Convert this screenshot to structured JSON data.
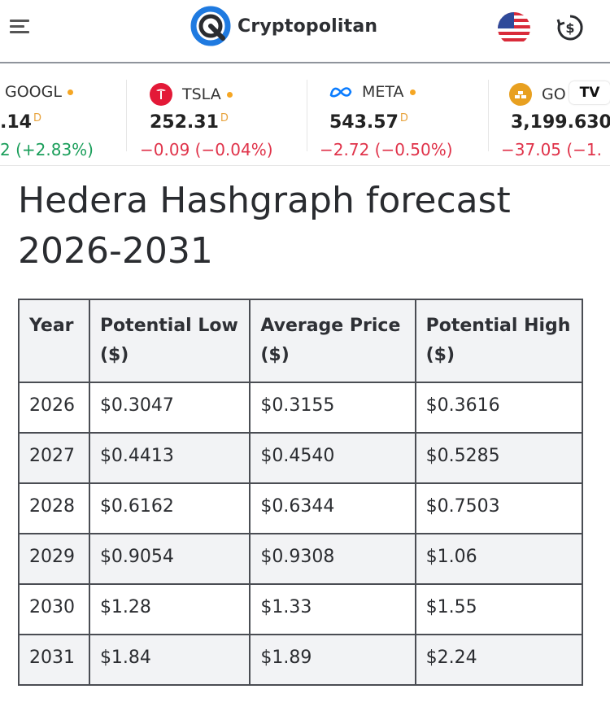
{
  "header": {
    "brand": "Cryptopolitan",
    "menu_icon": "hamburger-menu-icon",
    "flag_icon": "us-flag-icon",
    "currency_icon": "currency-switch-icon"
  },
  "ticker": [
    {
      "symbol": "GOOGL",
      "price": ".14",
      "delayed": "D",
      "change": "2 (+2.83%)",
      "direction": "up"
    },
    {
      "symbol": "TSLA",
      "price": "252.31",
      "delayed": "D",
      "change": "−0.09 (−0.04%)",
      "direction": "down"
    },
    {
      "symbol": "META",
      "price": "543.57",
      "delayed": "D",
      "change": "−2.72 (−0.50%)",
      "direction": "down"
    },
    {
      "symbol": "GO",
      "price": "3,199.630",
      "delayed": "",
      "change": "−37.05 (−1.",
      "direction": "down"
    }
  ],
  "tradingview_badge": "TV",
  "article": {
    "title_line1": "Hedera Hashgraph forecast",
    "title_line2": "2026-2031"
  },
  "table": {
    "headers": [
      "Year",
      "Potential Low ($)",
      "Average Price ($)",
      "Potential High ($)"
    ],
    "rows": [
      [
        "2026",
        "$0.3047",
        "$0.3155",
        "$0.3616"
      ],
      [
        "2027",
        "$0.4413",
        "$0.4540",
        "$0.5285"
      ],
      [
        "2028",
        "$0.6162",
        "$0.6344",
        "$0.7503"
      ],
      [
        "2029",
        "$0.9054",
        "$0.9308",
        "$1.06"
      ],
      [
        "2030",
        "$1.28",
        "$1.33",
        "$1.55"
      ],
      [
        "2031",
        "$1.84",
        "$1.89",
        "$2.24"
      ]
    ]
  },
  "colors": {
    "up": "#1a9e5a",
    "down": "#e0334a",
    "brand_blue": "#1f7ae0"
  }
}
